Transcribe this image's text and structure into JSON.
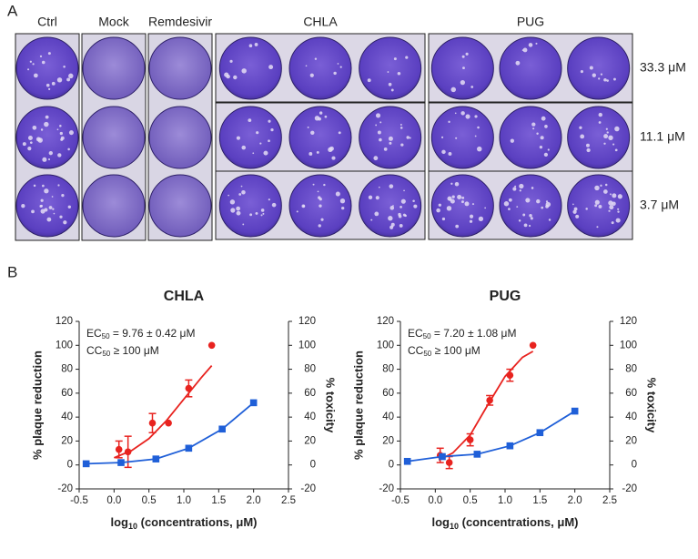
{
  "panel_a": {
    "label": "A",
    "columns": [
      "Ctrl",
      "Mock",
      "Remdesivir",
      "CHLA",
      "PUG"
    ],
    "concentrations": [
      "33.3 μM",
      "11.1 μM",
      "3.7 μM"
    ]
  },
  "panel_b": {
    "label": "B"
  },
  "chart_data": [
    {
      "type": "scatter",
      "title": "CHLA",
      "annotations": [
        [
          "EC",
          "50",
          " = 9.76 ±  0.42 μM"
        ],
        [
          "CC",
          "50",
          " ≥  100 μM"
        ]
      ],
      "xlabel": [
        "log",
        "10",
        " (concentrations, μM)"
      ],
      "ylabel": "% plaque reduction",
      "y2label": "% toxicity",
      "xlim": [
        -0.5,
        2.5
      ],
      "xticks": [
        -0.5,
        {
          "value": 0,
          "label": "0.0"
        },
        0.5,
        {
          "value": 1,
          "label": "1.0"
        },
        1.5,
        {
          "value": 2,
          "label": "2.0"
        },
        2.5
      ],
      "ylim": [
        -20,
        120
      ],
      "yticks": [
        -20,
        0,
        20,
        40,
        60,
        80,
        100,
        120
      ],
      "y2lim": [
        -20,
        120
      ],
      "y2ticks": [
        -20,
        0,
        20,
        40,
        60,
        80,
        100,
        120
      ],
      "series": [
        {
          "color": "#e8231f",
          "marker": "circle",
          "x": [
            0.07,
            0.2,
            0.55,
            0.78,
            1.07,
            1.4
          ],
          "values": [
            13,
            11,
            35,
            35,
            64,
            100
          ],
          "errors": [
            7,
            13,
            8,
            null,
            7,
            null
          ]
        },
        {
          "color": "#e8231f",
          "marker": "none",
          "line": true,
          "x": [
            0,
            0.25,
            0.5,
            0.75,
            1.0,
            1.25,
            1.4
          ],
          "values": [
            6,
            12,
            22,
            37,
            55,
            73,
            83
          ]
        },
        {
          "color": "#1f5fd8",
          "marker": "square",
          "line": true,
          "axis": "y2",
          "x": [
            -0.4,
            0.1,
            0.6,
            1.07,
            1.55,
            2.0
          ],
          "values": [
            1,
            2,
            5,
            14,
            30,
            52
          ]
        }
      ]
    },
    {
      "type": "scatter",
      "title": "PUG",
      "annotations": [
        [
          "EC",
          "50",
          " = 7.20 ±  1.08 μM"
        ],
        [
          "CC",
          "50",
          " ≥  100 μM"
        ]
      ],
      "xlabel": [
        "log",
        "10",
        " (concentrations, μM)"
      ],
      "ylabel": "% plaque reduction",
      "y2label": "% toxicity",
      "xlim": [
        -0.5,
        2.5
      ],
      "xticks": [
        -0.5,
        {
          "value": 0,
          "label": "0.0"
        },
        0.5,
        {
          "value": 1,
          "label": "1.0"
        },
        1.5,
        {
          "value": 2,
          "label": "2.0"
        },
        2.5
      ],
      "ylim": [
        -20,
        120
      ],
      "yticks": [
        -20,
        0,
        20,
        40,
        60,
        80,
        100,
        120
      ],
      "y2lim": [
        -20,
        120
      ],
      "y2ticks": [
        -20,
        0,
        20,
        40,
        60,
        80,
        100,
        120
      ],
      "series": [
        {
          "color": "#e8231f",
          "marker": "circle",
          "x": [
            0.07,
            0.2,
            0.5,
            0.78,
            1.07,
            1.4
          ],
          "values": [
            8,
            2,
            21,
            54,
            75,
            100
          ],
          "errors": [
            6,
            5,
            5,
            4,
            5,
            null
          ]
        },
        {
          "color": "#e8231f",
          "marker": "none",
          "line": true,
          "x": [
            0.05,
            0.25,
            0.5,
            0.75,
            1.0,
            1.25,
            1.4
          ],
          "values": [
            4,
            10,
            25,
            50,
            74,
            90,
            95
          ]
        },
        {
          "color": "#1f5fd8",
          "marker": "square",
          "line": true,
          "axis": "y2",
          "x": [
            -0.4,
            0.1,
            0.6,
            1.07,
            1.5,
            2.0
          ],
          "values": [
            3,
            7,
            9,
            16,
            27,
            45
          ]
        }
      ]
    }
  ]
}
